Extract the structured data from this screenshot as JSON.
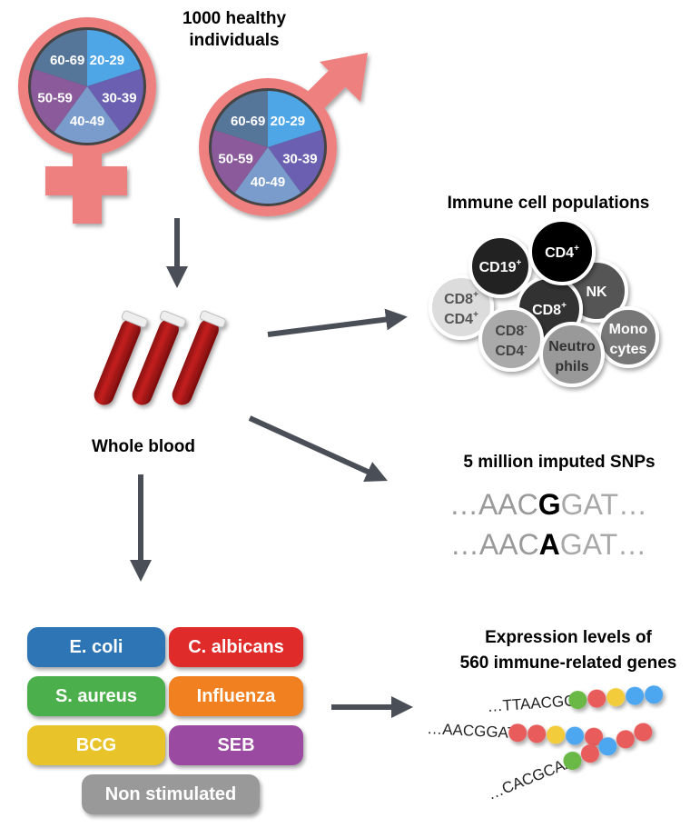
{
  "cohort": {
    "title_line1": "1000 healthy",
    "title_line2": "individuals",
    "age_groups": [
      "20-29",
      "30-39",
      "40-49",
      "50-59",
      "60-69"
    ],
    "age_colors": [
      "#4ea6e6",
      "#6a5fb0",
      "#7a9ccc",
      "#8a5a9a",
      "#557599"
    ],
    "symbol_color": "#ee8080"
  },
  "blood": {
    "label": "Whole blood"
  },
  "cells": {
    "title": "Immune cell populations",
    "items": [
      {
        "label": "CD19",
        "sup": "+"
      },
      {
        "label": "CD4",
        "sup": "+"
      },
      {
        "label": "NK",
        "sup": ""
      },
      {
        "label": "CD8",
        "sup": "+"
      },
      {
        "label": "CD8",
        "sup": "+",
        "label2": "CD4",
        "sup2": "+"
      },
      {
        "label": "CD8",
        "sup": "-",
        "label2": "CD4",
        "sup2": "-"
      },
      {
        "label": "Neutro",
        "label2": "phils"
      },
      {
        "label": "Mono",
        "label2": "cytes"
      }
    ]
  },
  "snps": {
    "title": "5 million imputed SNPs",
    "seq1": {
      "pre": "…AAC",
      "snp": "G",
      "post": "GAT…"
    },
    "seq2": {
      "pre": "…AAC",
      "snp": "A",
      "post": "GAT…"
    }
  },
  "stimuli": [
    {
      "label": "E. coli",
      "color": "#2e75b6"
    },
    {
      "label": "C. albicans",
      "color": "#e02b2b"
    },
    {
      "label": "S. aureus",
      "color": "#4bb04b"
    },
    {
      "label": "Influenza",
      "color": "#f08020"
    },
    {
      "label": "BCG",
      "color": "#e8c42a"
    },
    {
      "label": "SEB",
      "color": "#9a4aa0"
    },
    {
      "label": "Non stimulated",
      "color": "#999999"
    }
  ],
  "expression": {
    "title_line1": "Expression levels of",
    "title_line2": "560 immune-related genes",
    "seqs": [
      "…TTAACGG",
      "…AACGGAT",
      "…CACGCAA"
    ],
    "bead_colors": [
      "#6ab844",
      "#e85c5c",
      "#f2cc3a",
      "#4ea6f0"
    ]
  }
}
